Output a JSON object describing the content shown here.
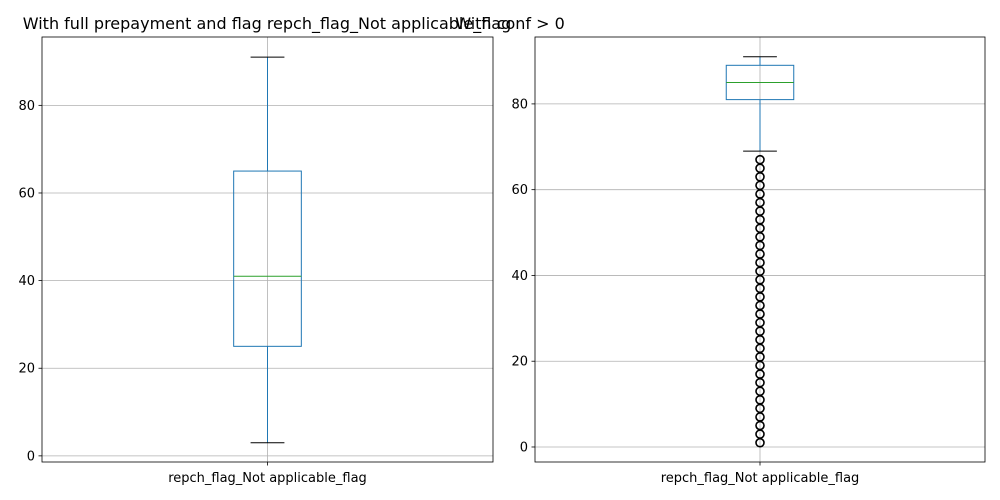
{
  "chart_data": [
    {
      "type": "box",
      "title": "With full prepayment and flag repch_flag_Not applicable_flag",
      "categories": [
        "repch_flag_Not applicable_flag"
      ],
      "ylim": [
        -1.4,
        95.6
      ],
      "yticks": [
        0,
        20,
        40,
        60,
        80
      ],
      "grid": true,
      "box": {
        "whisker_low": 3,
        "q1": 25,
        "median": 41,
        "q3": 65,
        "whisker_high": 91,
        "outliers": []
      }
    },
    {
      "type": "box",
      "title": "With conf > 0",
      "categories": [
        "repch_flag_Not applicable_flag"
      ],
      "ylim": [
        -3.5,
        95.6
      ],
      "yticks": [
        0,
        20,
        40,
        60,
        80
      ],
      "grid": true,
      "box": {
        "whisker_low": 69,
        "q1": 81,
        "median": 85,
        "q3": 89,
        "whisker_high": 91,
        "outliers": [
          1,
          3,
          5,
          7,
          9,
          11,
          13,
          15,
          17,
          19,
          21,
          23,
          25,
          27,
          29,
          31,
          33,
          35,
          37,
          39,
          41,
          43,
          45,
          47,
          49,
          51,
          53,
          55,
          57,
          59,
          61,
          63,
          65,
          67
        ]
      }
    }
  ],
  "colors": {
    "box": "#1f77b4",
    "median": "#2ca02c",
    "cap": "#000000",
    "grid": "#b0b0b0",
    "outlier": "#000000"
  }
}
